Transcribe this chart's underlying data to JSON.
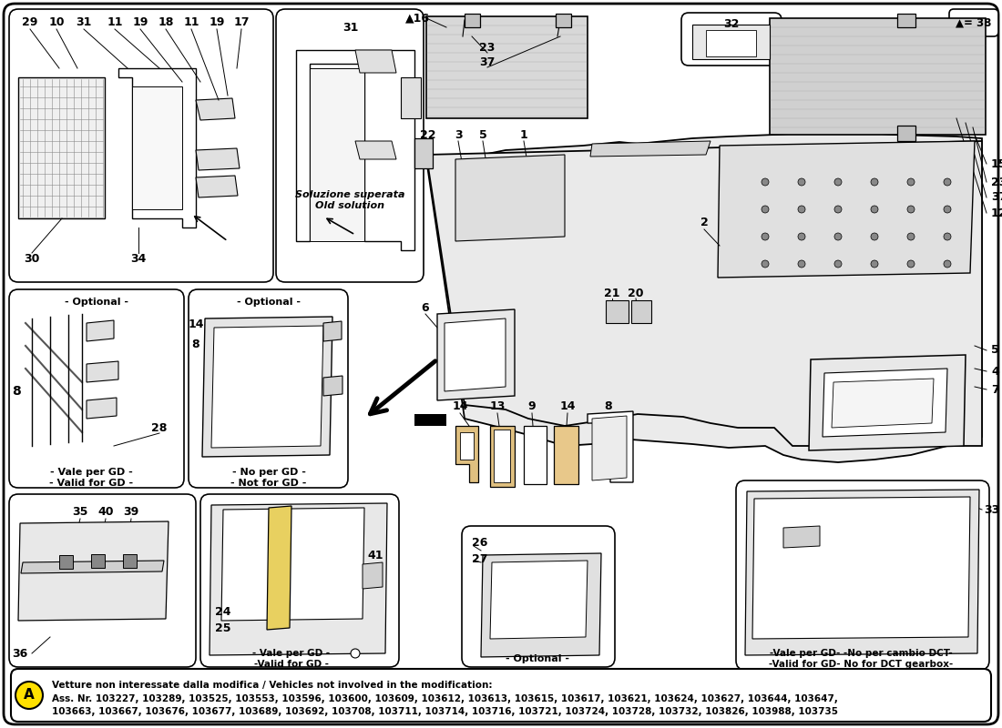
{
  "bg_color": "#ffffff",
  "fig_width": 11.0,
  "fig_height": 8.0,
  "dpi": 100,
  "bottom_note_line1": "Vetture non interessate dalla modifica / Vehicles not involved in the modification:",
  "bottom_note_line2": "Ass. Nr. 103227, 103289, 103525, 103553, 103596, 103600, 103609, 103612, 103613, 103615, 103617, 103621, 103624, 103627, 103644, 103647,",
  "bottom_note_line3": "103663, 103667, 103676, 103677, 103689, 103692, 103708, 103711, 103714, 103716, 103721, 103724, 103728, 103732, 103826, 103988, 103735",
  "top_right_text": "▲= 38",
  "old_solution": "Soluzione superata\nOld solution",
  "optional": "- Optional -",
  "vale_gd": "- Vale per GD -\n- Valid for GD -",
  "no_gd": "- No per GD -\n- Not for GD -",
  "vale_gd2": "- Vale per GD -\n-Valid for GD -",
  "vale_gd_dct": "-Vale per GD- -No per cambio DCT-\n-Valid for GD- No for DCT gearbox-",
  "opt_bottom": "- Optional -"
}
